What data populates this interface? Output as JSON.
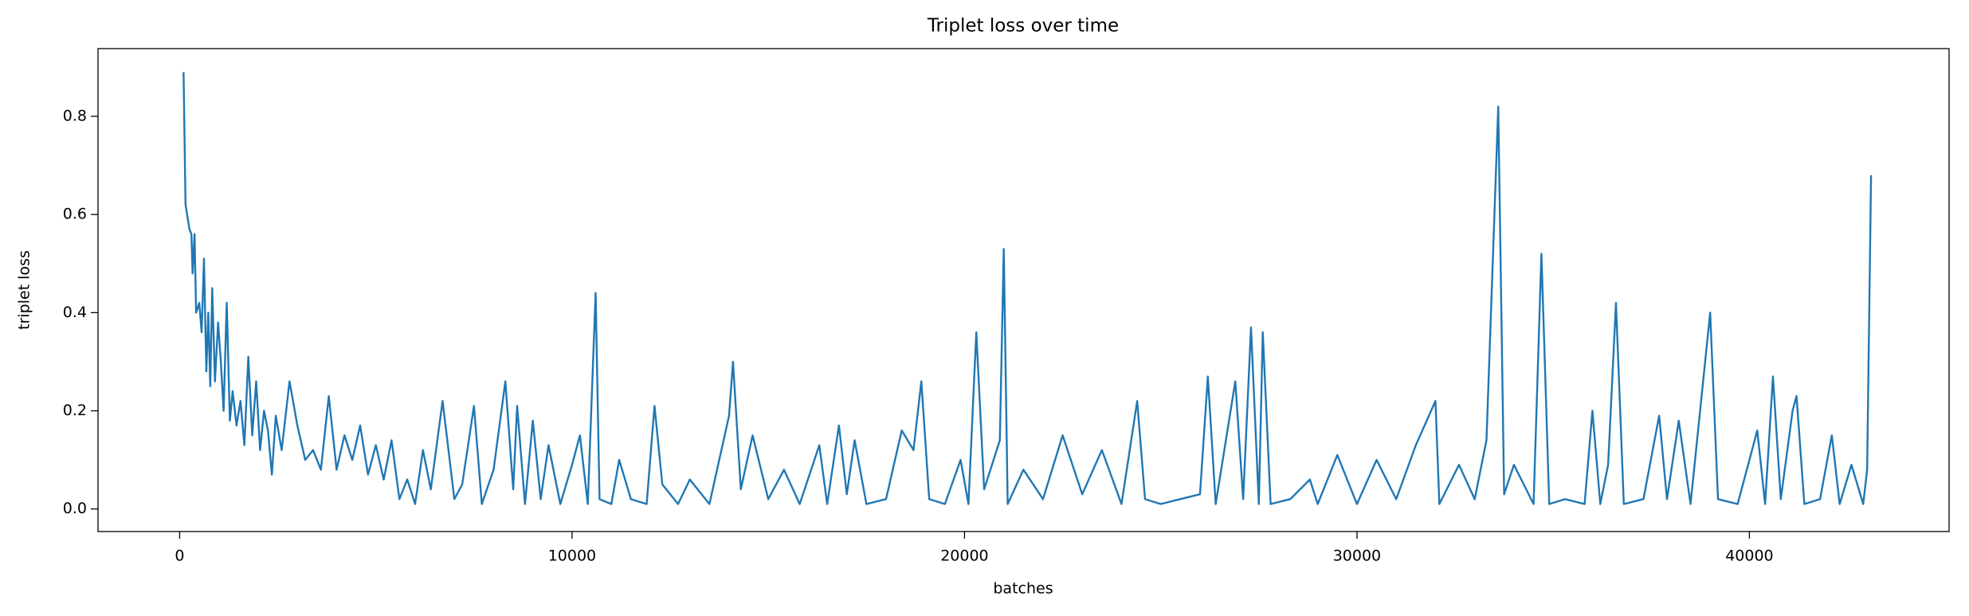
{
  "chart_data": {
    "type": "line",
    "title": "Triplet loss over time",
    "x_label": "batches",
    "y_label": "triplet loss",
    "x": [
      100,
      150,
      250,
      300,
      330,
      380,
      420,
      500,
      560,
      620,
      680,
      730,
      780,
      830,
      900,
      980,
      1050,
      1120,
      1200,
      1280,
      1350,
      1450,
      1550,
      1650,
      1750,
      1850,
      1950,
      2050,
      2150,
      2250,
      2350,
      2450,
      2600,
      2800,
      3000,
      3200,
      3400,
      3600,
      3800,
      4000,
      4200,
      4400,
      4600,
      4800,
      5000,
      5200,
      5400,
      5600,
      5800,
      6000,
      6200,
      6400,
      6700,
      7000,
      7200,
      7500,
      7700,
      8000,
      8300,
      8500,
      8600,
      8800,
      9000,
      9200,
      9400,
      9700,
      10000,
      10200,
      10400,
      10600,
      10700,
      11000,
      11200,
      11500,
      11900,
      12100,
      12300,
      12700,
      13000,
      13500,
      14000,
      14100,
      14300,
      14600,
      15000,
      15400,
      15800,
      16300,
      16500,
      16800,
      17000,
      17200,
      17500,
      18000,
      18400,
      18700,
      18900,
      19100,
      19500,
      19900,
      20100,
      20300,
      20500,
      20900,
      21000,
      21100,
      21500,
      22000,
      22500,
      23000,
      23500,
      24000,
      24400,
      24600,
      25000,
      25500,
      26000,
      26200,
      26400,
      26900,
      27100,
      27300,
      27500,
      27600,
      27800,
      28300,
      28800,
      29000,
      29500,
      30000,
      30500,
      31000,
      31500,
      32000,
      32100,
      32600,
      33000,
      33300,
      33600,
      33750,
      34000,
      34500,
      34700,
      34900,
      35300,
      35800,
      36000,
      36200,
      36400,
      36600,
      36800,
      37300,
      37700,
      37900,
      38200,
      38500,
      39000,
      39200,
      39700,
      40200,
      40400,
      40600,
      40800,
      41100,
      41200,
      41400,
      41800,
      42100,
      42300,
      42600,
      42900,
      43000,
      43100
    ],
    "series": [
      {
        "name": "triplet loss",
        "color": "#1f77b4",
        "values": [
          0.89,
          0.62,
          0.57,
          0.56,
          0.48,
          0.56,
          0.4,
          0.42,
          0.36,
          0.51,
          0.28,
          0.4,
          0.25,
          0.45,
          0.26,
          0.38,
          0.3,
          0.2,
          0.42,
          0.18,
          0.24,
          0.17,
          0.22,
          0.13,
          0.31,
          0.15,
          0.26,
          0.12,
          0.2,
          0.16,
          0.07,
          0.19,
          0.12,
          0.26,
          0.17,
          0.1,
          0.12,
          0.08,
          0.23,
          0.08,
          0.15,
          0.1,
          0.17,
          0.07,
          0.13,
          0.06,
          0.14,
          0.02,
          0.06,
          0.01,
          0.12,
          0.04,
          0.22,
          0.02,
          0.05,
          0.21,
          0.01,
          0.08,
          0.26,
          0.04,
          0.21,
          0.01,
          0.18,
          0.02,
          0.13,
          0.01,
          0.09,
          0.15,
          0.01,
          0.44,
          0.02,
          0.01,
          0.1,
          0.02,
          0.01,
          0.21,
          0.05,
          0.01,
          0.06,
          0.01,
          0.19,
          0.3,
          0.04,
          0.15,
          0.02,
          0.08,
          0.01,
          0.13,
          0.01,
          0.17,
          0.03,
          0.14,
          0.01,
          0.02,
          0.16,
          0.12,
          0.26,
          0.02,
          0.01,
          0.1,
          0.01,
          0.36,
          0.04,
          0.14,
          0.53,
          0.01,
          0.08,
          0.02,
          0.15,
          0.03,
          0.12,
          0.01,
          0.22,
          0.02,
          0.01,
          0.02,
          0.03,
          0.27,
          0.01,
          0.26,
          0.02,
          0.37,
          0.01,
          0.36,
          0.01,
          0.02,
          0.06,
          0.01,
          0.11,
          0.01,
          0.1,
          0.02,
          0.13,
          0.22,
          0.01,
          0.09,
          0.02,
          0.14,
          0.82,
          0.03,
          0.09,
          0.01,
          0.52,
          0.01,
          0.02,
          0.01,
          0.2,
          0.01,
          0.09,
          0.42,
          0.01,
          0.02,
          0.19,
          0.02,
          0.18,
          0.01,
          0.4,
          0.02,
          0.01,
          0.16,
          0.01,
          0.27,
          0.02,
          0.2,
          0.23,
          0.01,
          0.02,
          0.15,
          0.01,
          0.09,
          0.01,
          0.08,
          0.68
        ]
      }
    ],
    "xlim": [
      -2080,
      45088
    ],
    "xticks": [
      0,
      10000,
      20000,
      30000,
      40000
    ],
    "ylim": [
      -0.046,
      0.938
    ],
    "yticks": [
      {
        "value": 0,
        "label": "0.0"
      },
      0.2,
      0.4,
      0.6,
      0.8
    ],
    "grid": false
  }
}
